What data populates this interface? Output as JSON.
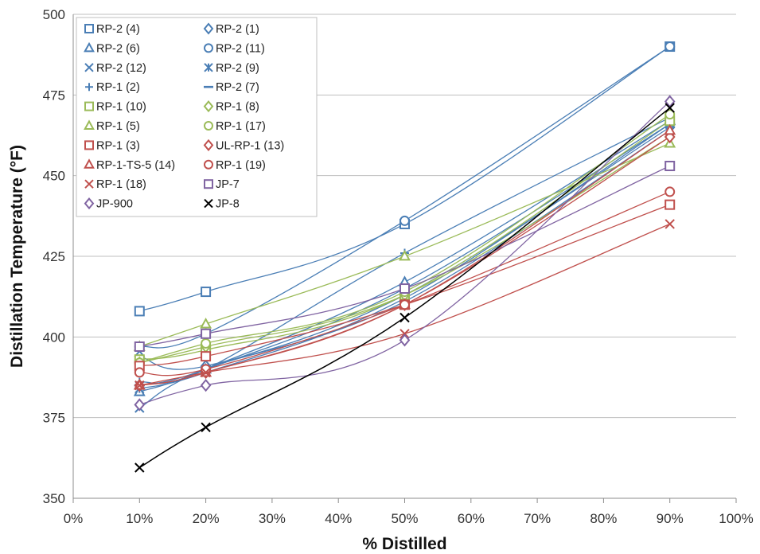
{
  "chart_data": {
    "type": "line",
    "title": "",
    "xlabel": "% Distilled",
    "ylabel": "Distillation Temperature (°F)",
    "xlim": [
      0,
      100
    ],
    "ylim": [
      350,
      500
    ],
    "x_ticks": [
      "0%",
      "10%",
      "20%",
      "30%",
      "40%",
      "50%",
      "60%",
      "70%",
      "80%",
      "90%",
      "100%"
    ],
    "y_ticks": [
      "350",
      "375",
      "400",
      "425",
      "450",
      "475",
      "500"
    ],
    "x": [
      10,
      20,
      50,
      90
    ],
    "grid": "horizontal",
    "legend_position": "top-left",
    "series": [
      {
        "name": "RP-2 (4)",
        "marker": "square",
        "color": "#4a7eb5",
        "values": [
          408,
          414,
          435,
          490
        ]
      },
      {
        "name": "RP-2 (1)",
        "marker": "diamond",
        "color": "#4a7eb5",
        "values": [
          394,
          391,
          413,
          465
        ]
      },
      {
        "name": "RP-2 (6)",
        "marker": "triangle",
        "color": "#4a7eb5",
        "values": [
          383,
          390,
          417,
          467
        ]
      },
      {
        "name": "RP-2 (11)",
        "marker": "circle",
        "color": "#4a7eb5",
        "values": [
          397,
          401,
          436,
          490
        ]
      },
      {
        "name": "RP-2 (12)",
        "marker": "x",
        "color": "#4a7eb5",
        "values": [
          378,
          390,
          411,
          464
        ]
      },
      {
        "name": "RP-2 (9)",
        "marker": "asterisk",
        "color": "#4a7eb5",
        "values": [
          384,
          389,
          412,
          466
        ]
      },
      {
        "name": "RP-1 (2)",
        "marker": "plus",
        "color": "#4a7eb5",
        "values": [
          386,
          390,
          426,
          468
        ]
      },
      {
        "name": "RP-2 (7)",
        "marker": "dash",
        "color": "#4a7eb5",
        "values": [
          385,
          390,
          415,
          466
        ]
      },
      {
        "name": "RP-1 (10)",
        "marker": "square",
        "color": "#9bbb59",
        "values": [
          393,
          396,
          413,
          467
        ]
      },
      {
        "name": "RP-1 (8)",
        "marker": "diamond",
        "color": "#9bbb59",
        "values": [
          392,
          397,
          413,
          462
        ]
      },
      {
        "name": "RP-1 (5)",
        "marker": "triangle",
        "color": "#9bbb59",
        "values": [
          397,
          404,
          425,
          460
        ]
      },
      {
        "name": "RP-1 (17)",
        "marker": "circle",
        "color": "#9bbb59",
        "values": [
          392,
          398,
          414,
          469
        ]
      },
      {
        "name": "RP-1 (3)",
        "marker": "square",
        "color": "#c0504d",
        "values": [
          391,
          394,
          410,
          441
        ]
      },
      {
        "name": "UL-RP-1 (13)",
        "marker": "diamond",
        "color": "#c0504d",
        "values": [
          385,
          389,
          410,
          462
        ]
      },
      {
        "name": "RP-1-TS-5 (14)",
        "marker": "triangle",
        "color": "#c0504d",
        "values": [
          385,
          389,
          410,
          464
        ]
      },
      {
        "name": "RP-1 (19)",
        "marker": "circle",
        "color": "#c0504d",
        "values": [
          389,
          390,
          410,
          445
        ]
      },
      {
        "name": "RP-1 (18)",
        "marker": "x",
        "color": "#c0504d",
        "values": [
          385,
          389,
          401,
          435
        ]
      },
      {
        "name": "JP-7",
        "marker": "square",
        "color": "#8064a2",
        "values": [
          397,
          401,
          415,
          453
        ]
      },
      {
        "name": "JP-900",
        "marker": "diamond",
        "color": "#8064a2",
        "values": [
          379,
          385,
          399,
          473
        ]
      },
      {
        "name": "JP-8",
        "marker": "x",
        "color": "#000000",
        "values": [
          359.5,
          372,
          406,
          471
        ]
      }
    ]
  }
}
